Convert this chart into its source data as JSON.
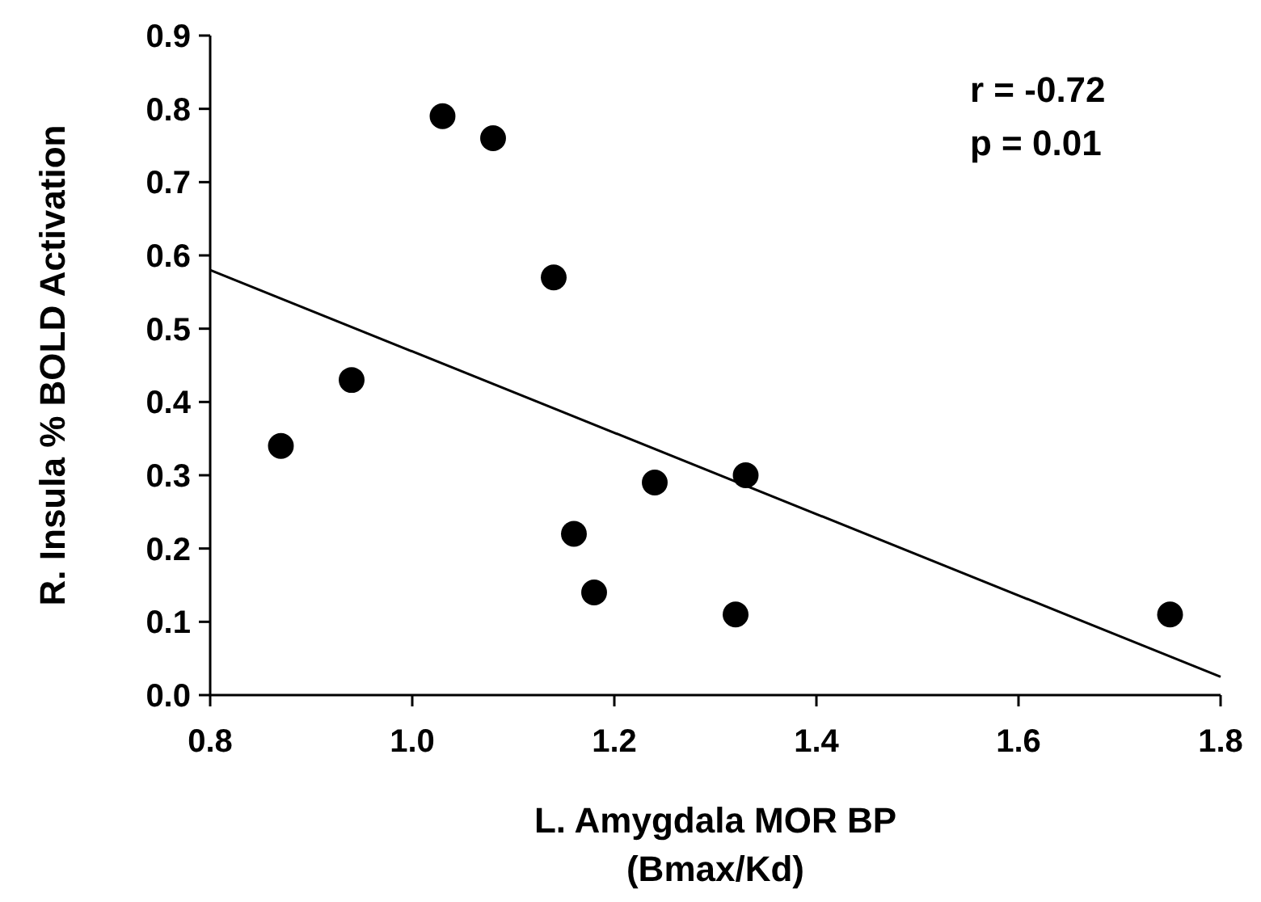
{
  "chart_data": {
    "type": "scatter",
    "xlabel": "L. Amygdala MOR BP\n(Bmax/Kd)",
    "ylabel": "R. Insula % BOLD Activation",
    "annotations": [
      "r = -0.72",
      "p = 0.01"
    ],
    "xlim": [
      0.8,
      1.8
    ],
    "xticks": [
      {
        "value": 0.8,
        "label": "0.8"
      },
      {
        "value": 1.0,
        "label": "1.0"
      },
      {
        "value": 1.2,
        "label": "1.2"
      },
      {
        "value": 1.4,
        "label": "1.4"
      },
      {
        "value": 1.6,
        "label": "1.6"
      },
      {
        "value": 1.8,
        "label": "1.8"
      }
    ],
    "ylim": [
      0,
      0.9
    ],
    "yticks": [
      {
        "value": 0,
        "label": "0.0"
      },
      {
        "value": 0.1,
        "label": "0.1"
      },
      {
        "value": 0.2,
        "label": "0.2"
      },
      {
        "value": 0.3,
        "label": "0.3"
      },
      {
        "value": 0.4,
        "label": "0.4"
      },
      {
        "value": 0.5,
        "label": "0.5"
      },
      {
        "value": 0.6,
        "label": "0.6"
      },
      {
        "value": 0.7,
        "label": "0.7"
      },
      {
        "value": 0.8,
        "label": "0.8"
      },
      {
        "value": 0.9,
        "label": "0.9"
      }
    ],
    "grid": false,
    "series": [
      {
        "marker": "circle",
        "color": "#000000",
        "x": [
          0.87,
          0.94,
          1.03,
          1.08,
          1.14,
          1.16,
          1.18,
          1.24,
          1.32,
          1.33,
          1.75
        ],
        "values": [
          0.34,
          0.43,
          0.79,
          0.76,
          0.57,
          0.22,
          0.14,
          0.29,
          0.11,
          0.3,
          0.11
        ]
      },
      {
        "type": "line",
        "color": "#000000",
        "line_style": "solid",
        "x": [
          0.8,
          1.8
        ],
        "values": [
          0.58,
          0.025
        ]
      }
    ]
  }
}
